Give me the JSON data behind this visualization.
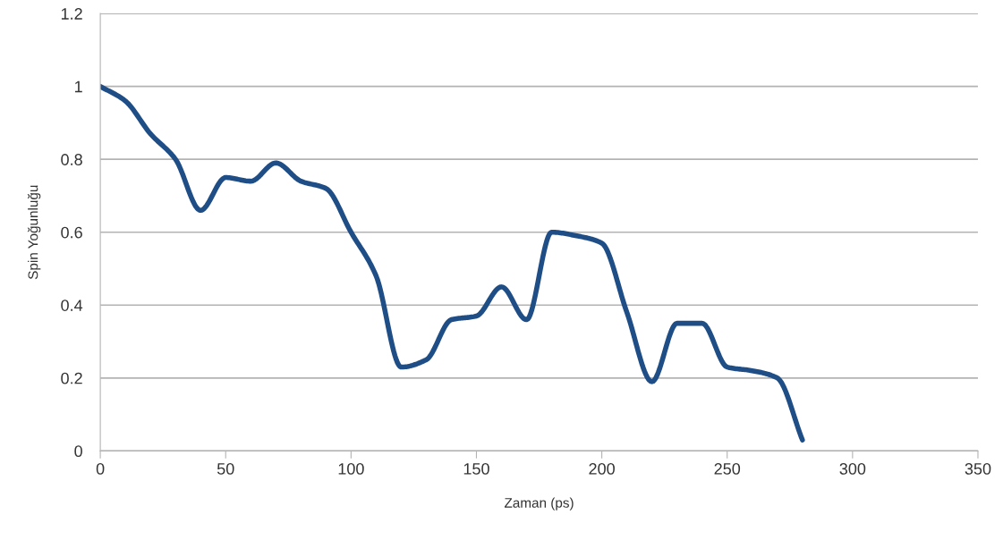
{
  "chart_data": {
    "type": "line",
    "xlabel": "Zaman (ps)",
    "ylabel": "Spin Yoğunluğu",
    "x": [
      0,
      10,
      20,
      30,
      40,
      50,
      60,
      70,
      80,
      90,
      100,
      110,
      120,
      130,
      140,
      150,
      160,
      170,
      180,
      190,
      200,
      210,
      220,
      230,
      240,
      250,
      260,
      270,
      280
    ],
    "series": [
      {
        "color": "#1f4e86",
        "values": [
          1.0,
          0.96,
          0.87,
          0.8,
          0.66,
          0.75,
          0.74,
          0.79,
          0.74,
          0.72,
          0.6,
          0.48,
          0.23,
          0.25,
          0.36,
          0.37,
          0.45,
          0.36,
          0.6,
          0.59,
          0.57,
          0.38,
          0.19,
          0.35,
          0.35,
          0.23,
          0.22,
          0.2,
          0.03
        ]
      }
    ],
    "xlim": [
      0,
      350
    ],
    "xticks": [
      0,
      50,
      100,
      150,
      200,
      250,
      300,
      350
    ],
    "ylim": [
      0,
      1.2
    ],
    "yticks": [
      0,
      0.2,
      0.4,
      0.6,
      0.8,
      1,
      1.2
    ],
    "grid": "y",
    "legend": false,
    "marker": "none",
    "line_style": "solid"
  }
}
